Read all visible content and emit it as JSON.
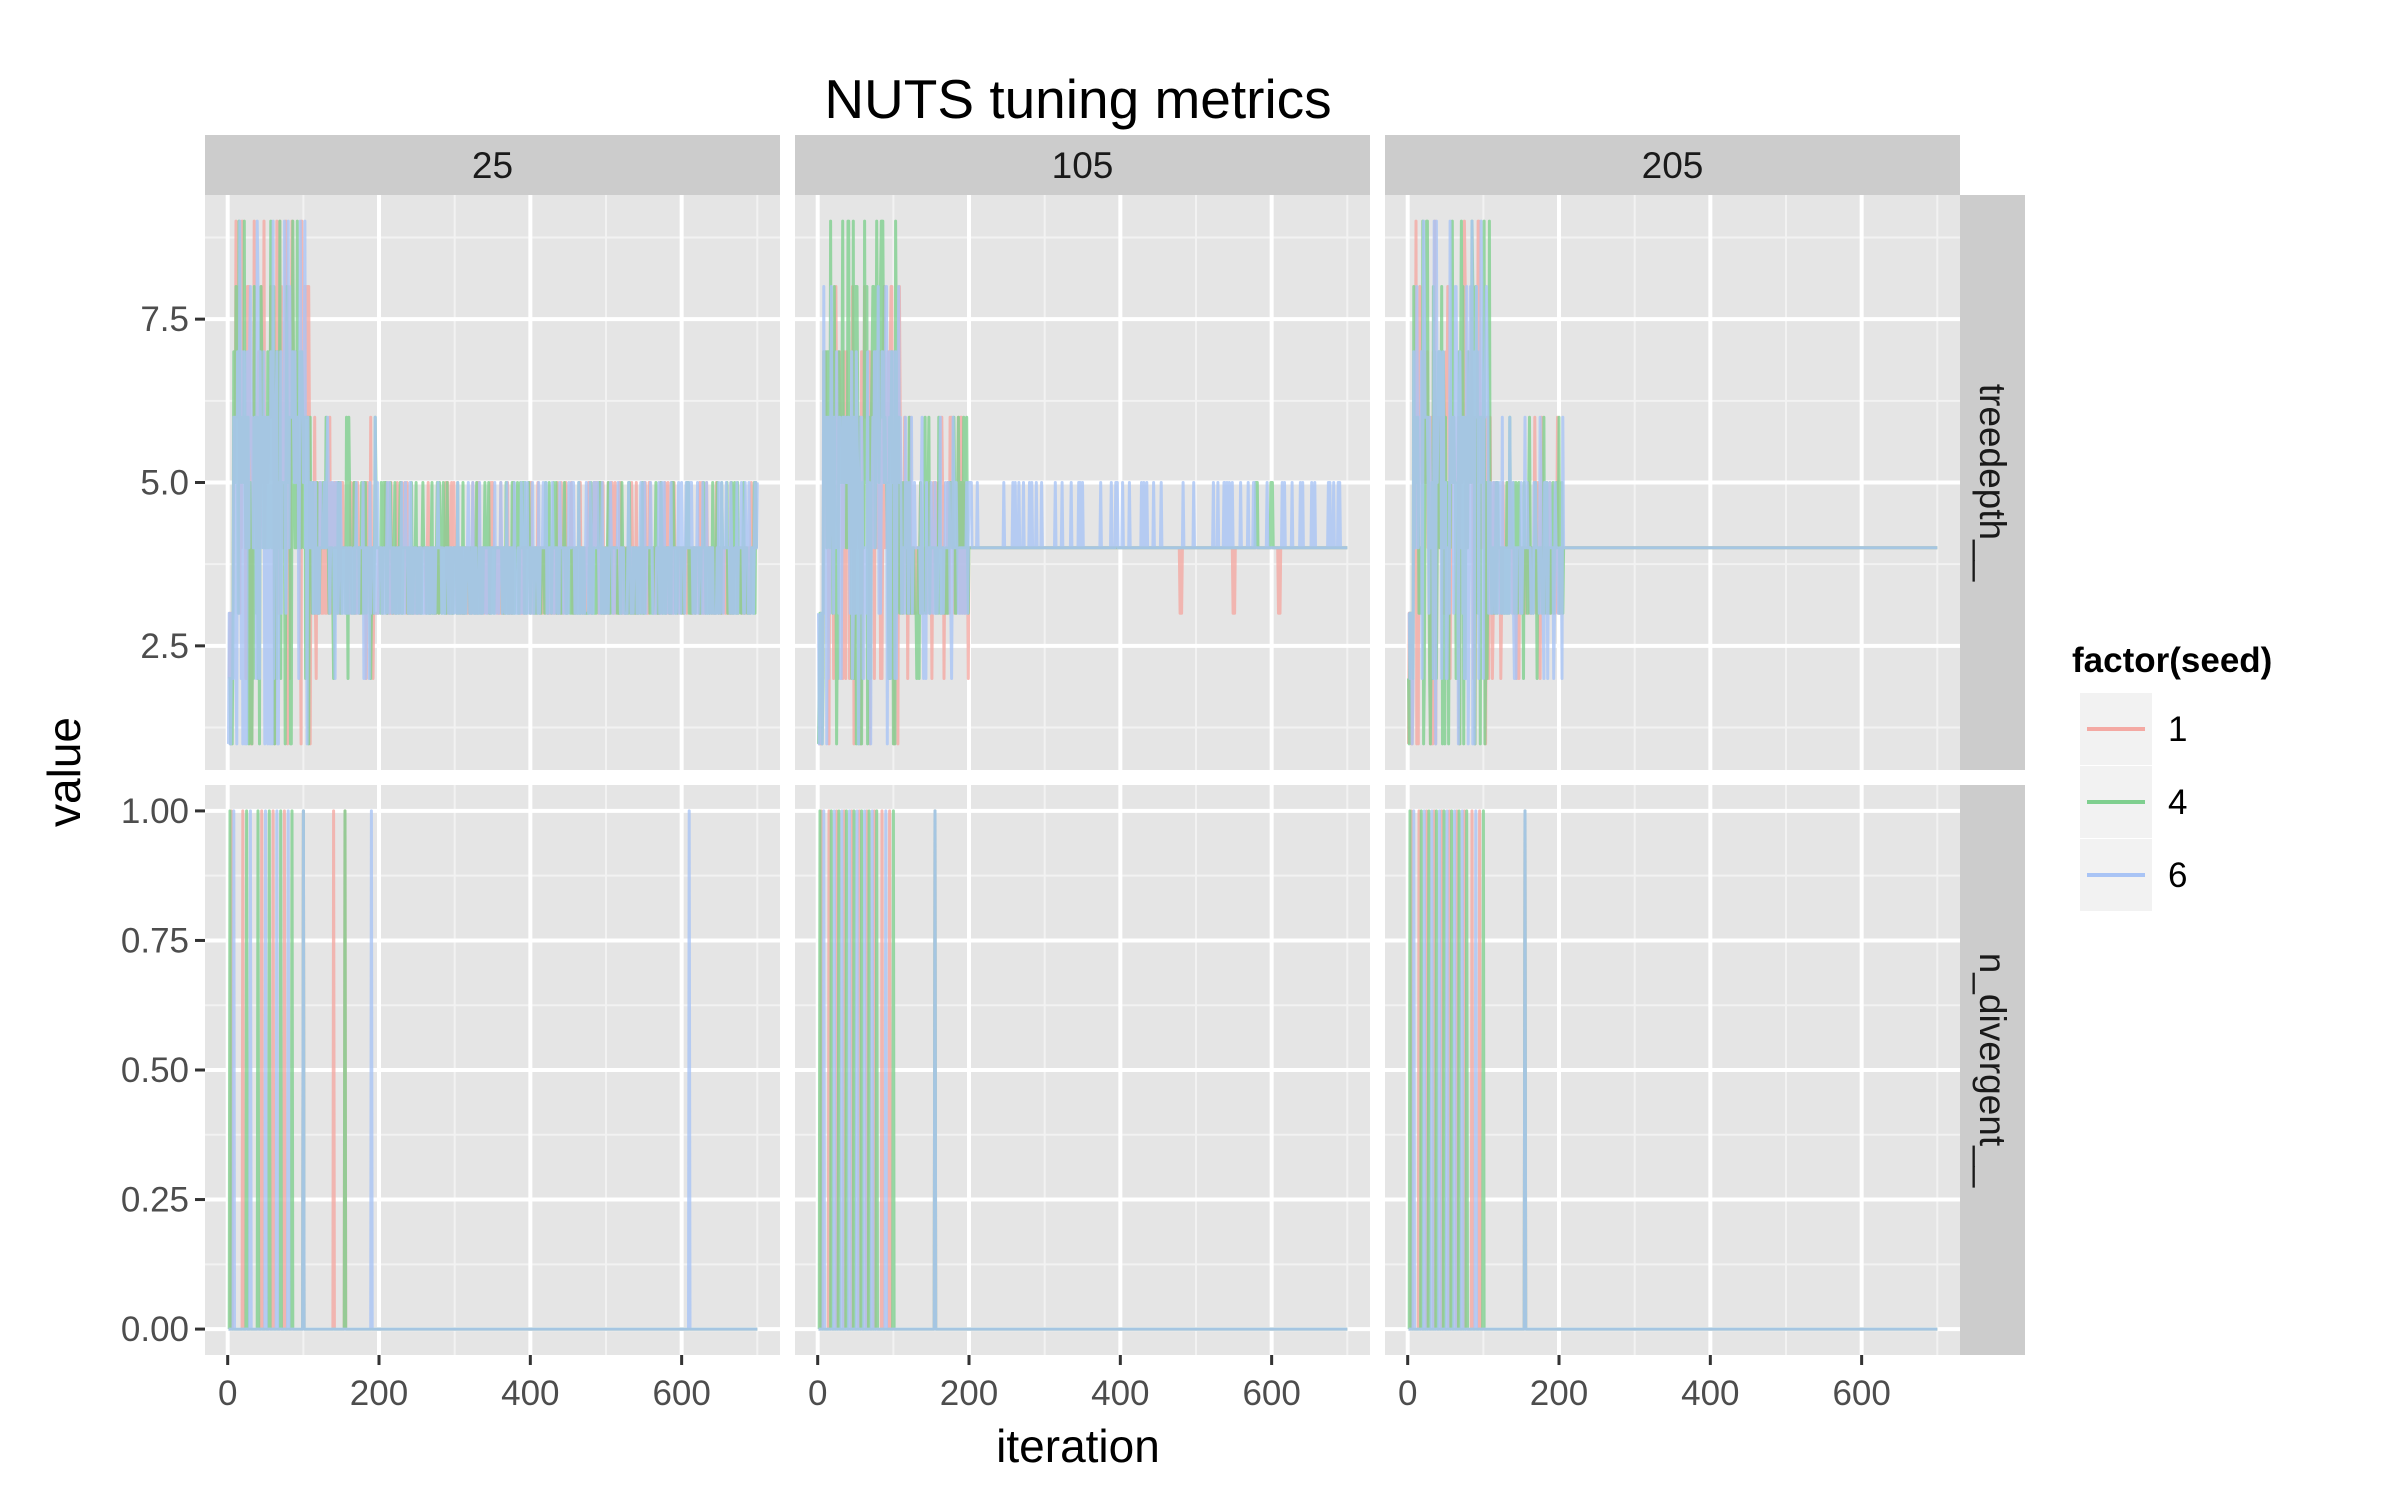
{
  "chart_data": {
    "type": "line",
    "title": "NUTS tuning metrics",
    "xlabel": "iteration",
    "ylabel": "value",
    "facet_columns": [
      "25",
      "105",
      "205"
    ],
    "facet_rows": [
      "treedepth__",
      "n_divergent__"
    ],
    "xlim": [
      -30,
      730
    ],
    "x_ticks": [
      0,
      200,
      400,
      600
    ],
    "x_tick_labels": [
      "0",
      "200",
      "400",
      "600"
    ],
    "rows": [
      {
        "name": "treedepth__",
        "ylim": [
          0.6,
          9.4
        ],
        "y_ticks": [
          2.5,
          5.0,
          7.5
        ],
        "y_tick_labels": [
          "2.5",
          "5.0",
          "7.5"
        ]
      },
      {
        "name": "n_divergent__",
        "ylim": [
          -0.05,
          1.05
        ],
        "y_ticks": [
          0.0,
          0.25,
          0.5,
          0.75,
          1.0
        ],
        "y_tick_labels": [
          "0.00",
          "0.25",
          "0.50",
          "0.75",
          "1.00"
        ]
      }
    ],
    "legend": {
      "title": "factor(seed)",
      "position": "right",
      "entries": [
        "1",
        "4",
        "6"
      ]
    },
    "colors": {
      "1": "#f4a9a3",
      "4": "#7fcf8f",
      "6": "#a9c4f5",
      "overlap": "#6aa7b8"
    },
    "grid": true,
    "n_iterations": 700,
    "series": [
      {
        "name": "1",
        "row": "treedepth__",
        "column": "25",
        "spikes_to": [
          1,
          2,
          3,
          5,
          6,
          7,
          8,
          9
        ],
        "noisy_until": 200,
        "steady_value": 4,
        "steady_range": [
          3,
          5
        ]
      },
      {
        "name": "4",
        "row": "treedepth__",
        "column": "25",
        "spikes_to": [
          1,
          2,
          3,
          5,
          6,
          7,
          8,
          9
        ],
        "noisy_until": 200,
        "steady_value": 4,
        "steady_range": [
          3,
          5
        ]
      },
      {
        "name": "6",
        "row": "treedepth__",
        "column": "25",
        "spikes_to": [
          1,
          2,
          3,
          5,
          6,
          7,
          8,
          9
        ],
        "noisy_until": 200,
        "steady_value": 4,
        "steady_range": [
          3,
          5
        ]
      },
      {
        "name": "1",
        "row": "treedepth__",
        "column": "105",
        "spikes_to": [
          1,
          2,
          3,
          5,
          6,
          7,
          8
        ],
        "noisy_until": 200,
        "steady_value": 4,
        "late_spikes": [
          [
            480,
            3
          ],
          [
            550,
            3
          ],
          [
            610,
            3
          ]
        ]
      },
      {
        "name": "4",
        "row": "treedepth__",
        "column": "105",
        "spikes_to": [
          1,
          2,
          3,
          5,
          6,
          7,
          8,
          9
        ],
        "noisy_until": 200,
        "steady_value": 4,
        "late_spikes": [
          [
            580,
            5
          ],
          [
            600,
            5
          ]
        ]
      },
      {
        "name": "6",
        "row": "treedepth__",
        "column": "105",
        "spikes_to": [
          1,
          2,
          3,
          5,
          6,
          7,
          8
        ],
        "noisy_until": 200,
        "steady_value": 4,
        "steady_range": [
          4,
          5
        ]
      },
      {
        "name": "1",
        "row": "treedepth__",
        "column": "205",
        "spikes_to": [
          1,
          2,
          3,
          5,
          6,
          7,
          8,
          9
        ],
        "noisy_until": 205,
        "steady_value": 4
      },
      {
        "name": "4",
        "row": "treedepth__",
        "column": "205",
        "spikes_to": [
          1,
          2,
          3,
          5,
          6,
          7,
          8,
          9
        ],
        "noisy_until": 205,
        "steady_value": 4
      },
      {
        "name": "6",
        "row": "treedepth__",
        "column": "205",
        "spikes_to": [
          1,
          2,
          3,
          5,
          6,
          7,
          8,
          9
        ],
        "noisy_until": 205,
        "steady_value": 4
      },
      {
        "name": "1",
        "row": "n_divergent__",
        "column": "25",
        "divergent_at": [
          5,
          20,
          45,
          60,
          75,
          100,
          140,
          155
        ],
        "baseline": 0
      },
      {
        "name": "4",
        "row": "n_divergent__",
        "column": "25",
        "divergent_at": [
          3,
          25,
          40,
          55,
          70,
          85,
          100,
          155
        ],
        "baseline": 0
      },
      {
        "name": "6",
        "row": "n_divergent__",
        "column": "25",
        "divergent_at": [
          8,
          30,
          50,
          65,
          80,
          100,
          190,
          610
        ],
        "baseline": 0
      },
      {
        "name": "1",
        "row": "n_divergent__",
        "column": "105",
        "divergent_at": [
          5,
          15,
          25,
          35,
          45,
          55,
          65,
          75,
          85,
          95,
          155
        ],
        "baseline": 0
      },
      {
        "name": "4",
        "row": "n_divergent__",
        "column": "105",
        "divergent_at": [
          3,
          18,
          28,
          38,
          48,
          58,
          68,
          78,
          100,
          155
        ],
        "baseline": 0
      },
      {
        "name": "6",
        "row": "n_divergent__",
        "column": "105",
        "divergent_at": [
          8,
          22,
          32,
          42,
          52,
          62,
          72,
          90,
          155
        ],
        "baseline": 0
      },
      {
        "name": "1",
        "row": "n_divergent__",
        "column": "205",
        "divergent_at": [
          5,
          15,
          25,
          35,
          45,
          55,
          65,
          75,
          85,
          95,
          155
        ],
        "baseline": 0
      },
      {
        "name": "4",
        "row": "n_divergent__",
        "column": "205",
        "divergent_at": [
          3,
          18,
          28,
          38,
          48,
          58,
          68,
          78,
          100,
          155
        ],
        "baseline": 0
      },
      {
        "name": "6",
        "row": "n_divergent__",
        "column": "205",
        "divergent_at": [
          8,
          22,
          32,
          42,
          52,
          62,
          72,
          90,
          155
        ],
        "baseline": 0
      }
    ]
  }
}
